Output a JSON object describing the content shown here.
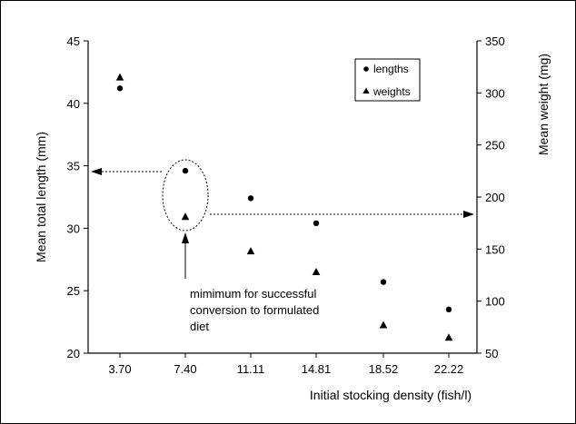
{
  "chart_data": {
    "type": "scatter",
    "categories": [
      "3.70",
      "7.40",
      "11.11",
      "14.81",
      "18.52",
      "22.22"
    ],
    "xlabel": "Initial stocking density (fish/l)",
    "ylabel_left": "Mean total length (mm)",
    "ylabel_right": "Mean weight (mg)",
    "ylim_left": [
      20,
      45
    ],
    "ylim_right": [
      50,
      350
    ],
    "yticks_left": [
      20,
      25,
      30,
      35,
      40,
      45
    ],
    "yticks_right": [
      50,
      100,
      150,
      200,
      250,
      300,
      350
    ],
    "grid": false,
    "legend_position": "top-right",
    "series": [
      {
        "name": "lengths",
        "axis": "left",
        "marker": "circle",
        "values": [
          41.2,
          34.6,
          32.4,
          30.4,
          25.7,
          23.5
        ]
      },
      {
        "name": "weights",
        "axis": "right",
        "marker": "triangle",
        "values": [
          315,
          181,
          148,
          128,
          77,
          65
        ]
      }
    ],
    "annotation": {
      "lines": [
        "mimimum for successful",
        "conversion to formulated",
        "diet"
      ]
    }
  }
}
